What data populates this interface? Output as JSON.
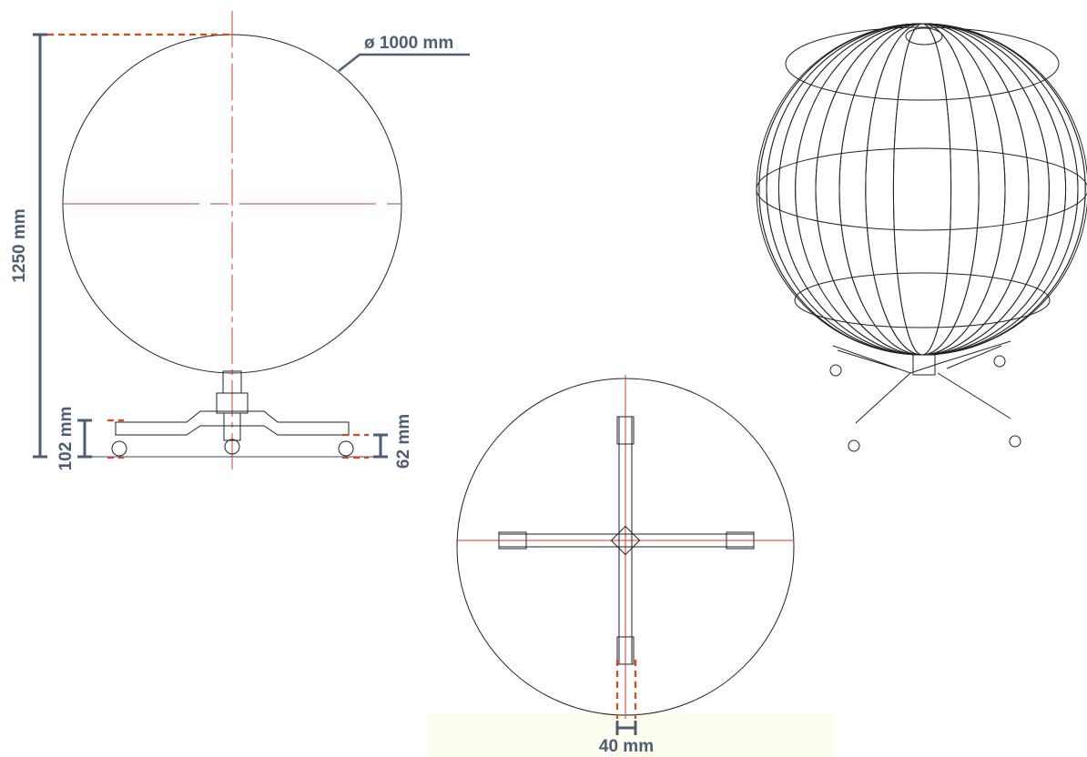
{
  "dimensions": {
    "diameter": "ø 1000 mm",
    "height": "1250 mm",
    "base_height": "102 mm",
    "wheel_height": "62 mm",
    "tube_width": "40 mm"
  }
}
